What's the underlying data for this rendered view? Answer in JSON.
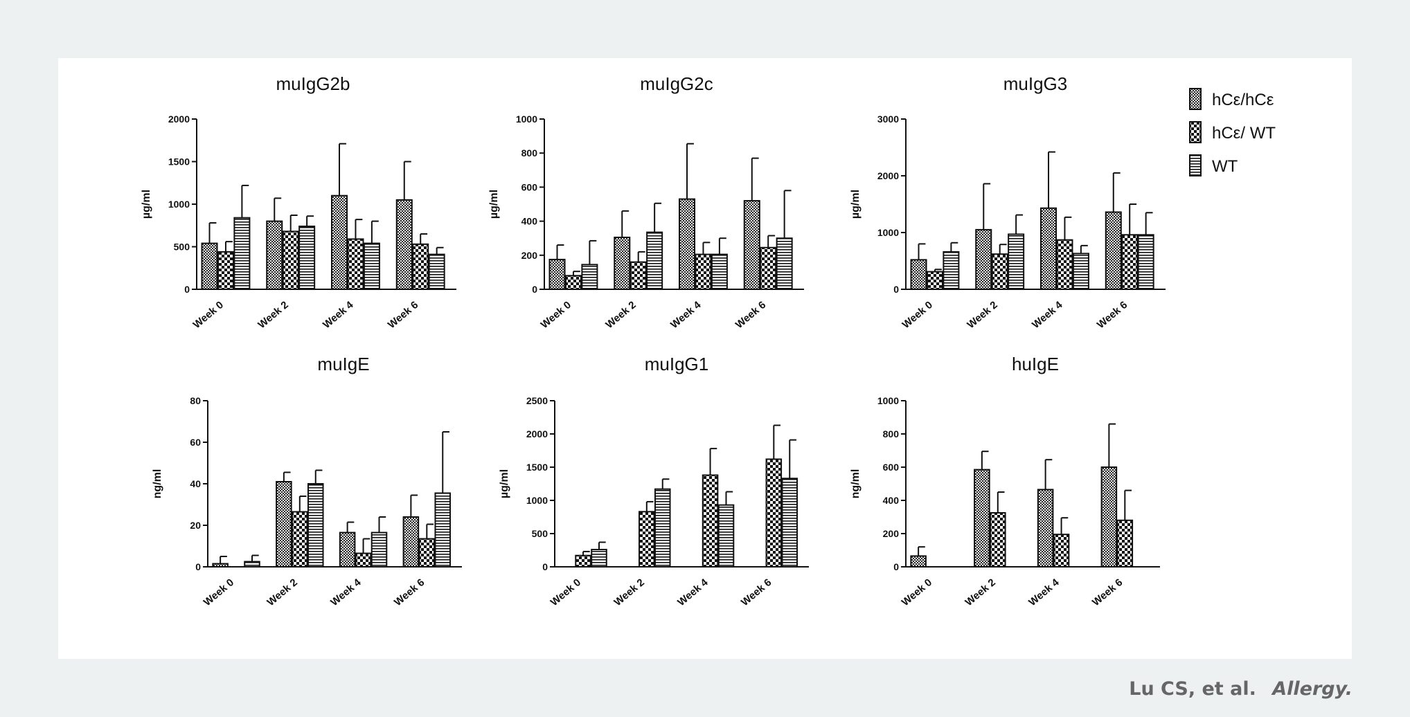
{
  "citation": {
    "authors": "Lu CS, et al.",
    "journal": "Allergy."
  },
  "legend": [
    {
      "label": "hCε/hCε",
      "pattern": "fine"
    },
    {
      "label": "hCε/ WT",
      "pattern": "check"
    },
    {
      "label": "WT",
      "pattern": "hstripe"
    }
  ],
  "chart_data": [
    {
      "type": "bar",
      "title": "muIgG2b",
      "ylabel": "µg/ml",
      "categories": [
        "Week 0",
        "Week 2",
        "Week 4",
        "Week 6"
      ],
      "ylim": [
        0,
        2000
      ],
      "yticks": [
        "0",
        "500",
        "1000",
        "1500",
        "2000"
      ],
      "series": [
        {
          "name": "hCε/hCε",
          "values": [
            540,
            800,
            1100,
            1050
          ],
          "errors": [
            240,
            270,
            610,
            450
          ]
        },
        {
          "name": "hCε/ WT",
          "values": [
            440,
            680,
            590,
            530
          ],
          "errors": [
            120,
            190,
            230,
            120
          ]
        },
        {
          "name": "WT",
          "values": [
            840,
            740,
            540,
            410
          ],
          "errors": [
            380,
            120,
            260,
            80
          ]
        }
      ]
    },
    {
      "type": "bar",
      "title": "muIgG2c",
      "ylabel": "µg/ml",
      "categories": [
        "Week 0",
        "Week 2",
        "Week 4",
        "Week 6"
      ],
      "ylim": [
        0,
        1000
      ],
      "yticks": [
        "0",
        "200",
        "400",
        "600",
        "800",
        "1000"
      ],
      "series": [
        {
          "name": "hCε/hCε",
          "values": [
            175,
            305,
            530,
            520
          ],
          "errors": [
            85,
            155,
            325,
            250
          ]
        },
        {
          "name": "hCε/ WT",
          "values": [
            80,
            160,
            205,
            245
          ],
          "errors": [
            25,
            60,
            70,
            70
          ]
        },
        {
          "name": "WT",
          "values": [
            145,
            335,
            205,
            300
          ],
          "errors": [
            140,
            170,
            95,
            280
          ]
        }
      ]
    },
    {
      "type": "bar",
      "title": "muIgG3",
      "ylabel": "µg/ml",
      "categories": [
        "Week 0",
        "Week 2",
        "Week 4",
        "Week 6"
      ],
      "ylim": [
        0,
        3000
      ],
      "yticks": [
        "0",
        "1000",
        "2000",
        "3000"
      ],
      "series": [
        {
          "name": "hCε/hCε",
          "values": [
            520,
            1050,
            1430,
            1360
          ],
          "errors": [
            280,
            810,
            990,
            690
          ]
        },
        {
          "name": "hCε/ WT",
          "values": [
            310,
            620,
            870,
            960
          ],
          "errors": [
            40,
            170,
            400,
            540
          ]
        },
        {
          "name": "WT",
          "values": [
            660,
            970,
            630,
            960
          ],
          "errors": [
            160,
            340,
            140,
            390
          ]
        }
      ]
    },
    {
      "type": "bar",
      "title": "muIgE",
      "ylabel": "ng/ml",
      "categories": [
        "Week 0",
        "Week 2",
        "Week 4",
        "Week 6"
      ],
      "ylim": [
        0,
        80
      ],
      "yticks": [
        "0",
        "20",
        "40",
        "60",
        "80"
      ],
      "series": [
        {
          "name": "hCε/hCε",
          "values": [
            1.5,
            41,
            16.5,
            24
          ],
          "errors": [
            3.5,
            4.5,
            5,
            10.5
          ]
        },
        {
          "name": "hCε/ WT",
          "values": [
            0,
            26.5,
            6.5,
            13.5
          ],
          "errors": [
            0,
            7.5,
            7,
            7
          ]
        },
        {
          "name": "WT",
          "values": [
            2.5,
            40,
            16.5,
            35.5
          ],
          "errors": [
            3,
            6.5,
            7.5,
            29.5
          ]
        }
      ]
    },
    {
      "type": "bar",
      "title": "muIgG1",
      "ylabel": "µg/ml",
      "categories": [
        "Week 0",
        "Week 2",
        "Week 4",
        "Week 6"
      ],
      "ylim": [
        0,
        2500
      ],
      "yticks": [
        "0",
        "500",
        "1000",
        "1500",
        "2000",
        "2500"
      ],
      "series": [
        {
          "name": "hCε/hCε",
          "values": [
            0,
            0,
            0,
            0
          ],
          "errors": [
            0,
            0,
            0,
            0
          ]
        },
        {
          "name": "hCε/ WT",
          "values": [
            170,
            830,
            1380,
            1620
          ],
          "errors": [
            60,
            150,
            400,
            510
          ]
        },
        {
          "name": "WT",
          "values": [
            260,
            1170,
            930,
            1330
          ],
          "errors": [
            110,
            150,
            200,
            580
          ]
        }
      ]
    },
    {
      "type": "bar",
      "title": "huIgE",
      "ylabel": "ng/ml",
      "categories": [
        "Week 0",
        "Week 2",
        "Week 4",
        "Week 6"
      ],
      "ylim": [
        0,
        1000
      ],
      "yticks": [
        "0",
        "200",
        "400",
        "600",
        "800",
        "1000"
      ],
      "series": [
        {
          "name": "hCε/hCε",
          "values": [
            65,
            585,
            465,
            600
          ],
          "errors": [
            55,
            110,
            180,
            260
          ]
        },
        {
          "name": "hCε/ WT",
          "values": [
            0,
            325,
            195,
            280
          ],
          "errors": [
            0,
            125,
            100,
            180
          ]
        },
        {
          "name": "WT",
          "values": [
            0,
            0,
            0,
            0
          ],
          "errors": [
            0,
            0,
            0,
            0
          ]
        }
      ]
    }
  ]
}
